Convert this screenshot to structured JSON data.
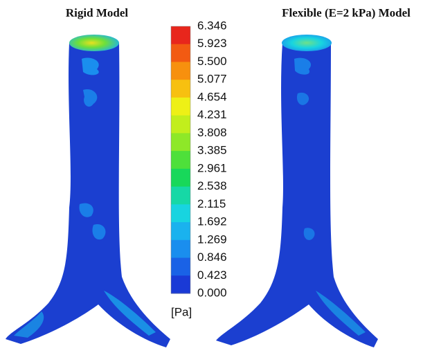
{
  "figure": {
    "left_title": "Rigid Model",
    "right_title": "Flexible (E=2 kPa) Model",
    "colorbar": {
      "labels": [
        "6.346",
        "5.923",
        "5.500",
        "5.077",
        "4.654",
        "4.231",
        "3.808",
        "3.385",
        "2.961",
        "2.538",
        "2.115",
        "1.692",
        "1.269",
        "0.846",
        "0.423",
        "0.000"
      ],
      "colors": [
        "#e8261c",
        "#f25a12",
        "#f7900e",
        "#f7c010",
        "#eef016",
        "#c2ee1c",
        "#8ee828",
        "#4ee03a",
        "#18d85a",
        "#16d8a6",
        "#18d4e0",
        "#1ab2ee",
        "#1a8eee",
        "#1a62e6",
        "#1a3ad6"
      ],
      "unit": "[Pa]"
    }
  }
}
